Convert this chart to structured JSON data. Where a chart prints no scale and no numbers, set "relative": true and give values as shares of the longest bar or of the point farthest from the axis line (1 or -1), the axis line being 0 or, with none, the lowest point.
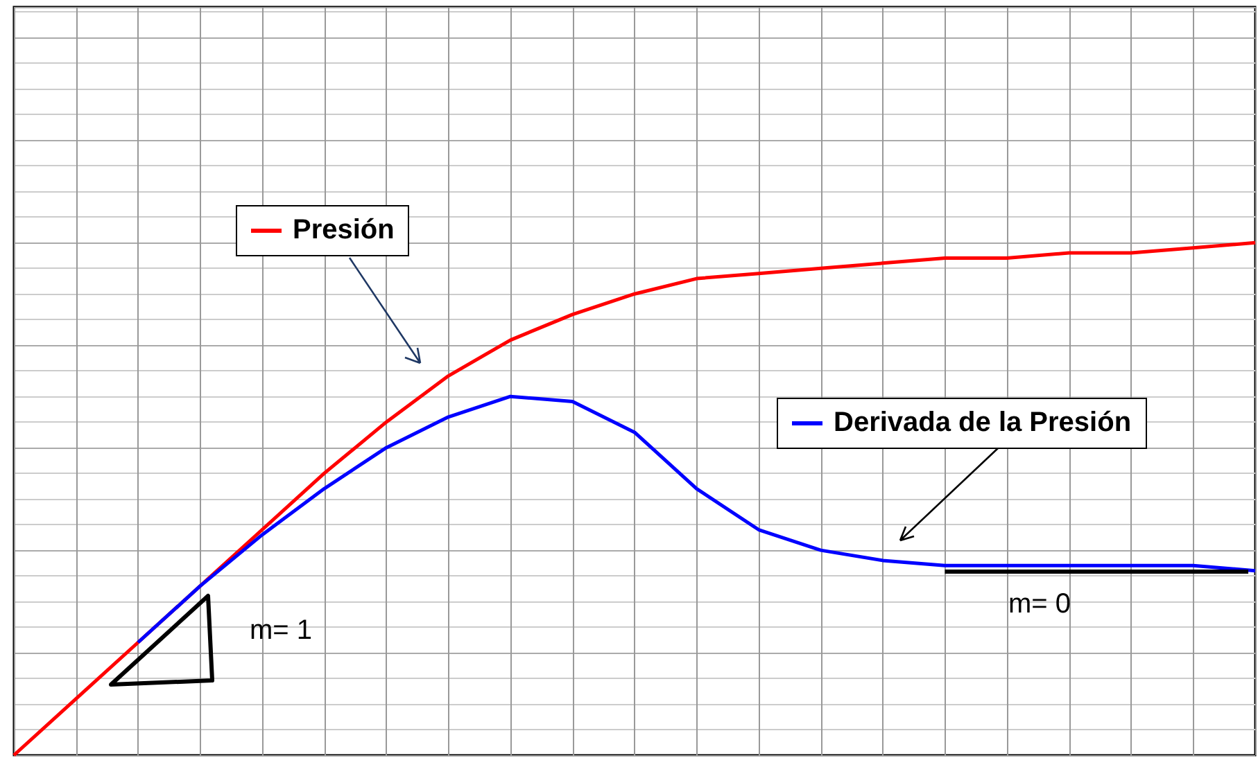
{
  "chart_data": {
    "type": "line",
    "relative": true,
    "grid": true,
    "legend": "top",
    "tick_labels": false,
    "categories": [
      null,
      null,
      null,
      null,
      null,
      null,
      null,
      null,
      null,
      null,
      null,
      null,
      null,
      null,
      null,
      null,
      null,
      null,
      null,
      null,
      null
    ],
    "series": [
      {
        "name": "Presión",
        "color": "#ff0000",
        "values": [
          0,
          0.11,
          0.22,
          0.33,
          0.44,
          0.55,
          0.65,
          0.74,
          0.81,
          0.86,
          0.9,
          0.93,
          0.94,
          0.95,
          0.96,
          0.97,
          0.97,
          0.98,
          0.98,
          0.99,
          1
        ]
      },
      {
        "name": "Derivada de la Presión",
        "color": "#0000ff",
        "values": [
          null,
          null,
          0.22,
          0.33,
          0.43,
          0.52,
          0.6,
          0.66,
          0.7,
          0.69,
          0.63,
          0.52,
          0.44,
          0.4,
          0.38,
          0.37,
          0.37,
          0.37,
          0.37,
          0.37,
          0.36
        ]
      }
    ],
    "ref_lines": [
      {
        "axis": "y",
        "value": 0.36,
        "color": "#000000"
      }
    ],
    "annotations": [
      "m= 1",
      "m= 0"
    ]
  }
}
